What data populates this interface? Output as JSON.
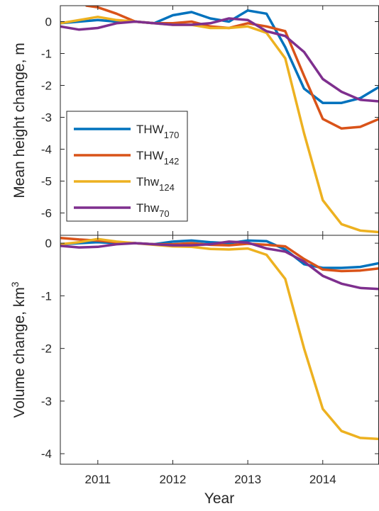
{
  "chart_data": [
    {
      "type": "line",
      "ylabel": "Mean height change, m",
      "xlim": [
        2010.5,
        2014.75
      ],
      "ylim": [
        -6.7,
        0.5
      ],
      "yticks": [
        0,
        -1,
        -2,
        -3,
        -4,
        -5,
        -6
      ],
      "ytick_labels": [
        "0",
        "-1",
        "-2",
        "-3",
        "-4",
        "-5",
        "-6"
      ],
      "legend_position": "lower-left",
      "series": [
        {
          "name": "THW",
          "name_sub": "170",
          "color": "#0072BD",
          "x": [
            2010.5,
            2010.75,
            2011.0,
            2011.25,
            2011.5,
            2011.75,
            2012.0,
            2012.25,
            2012.5,
            2012.75,
            2013.0,
            2013.25,
            2013.5,
            2013.75,
            2014.0,
            2014.25,
            2014.5,
            2014.75
          ],
          "y": [
            -0.05,
            0.0,
            0.05,
            0.0,
            0.0,
            -0.05,
            0.2,
            0.3,
            0.1,
            0.0,
            0.35,
            0.25,
            -0.8,
            -2.1,
            -2.55,
            -2.55,
            -2.4,
            -2.05
          ]
        },
        {
          "name": "THW",
          "name_sub": "142",
          "color": "#D95319",
          "x": [
            2010.85,
            2011.0,
            2011.25,
            2011.5,
            2011.75,
            2012.0,
            2012.25,
            2012.5,
            2012.75,
            2013.0,
            2013.25,
            2013.5,
            2013.75,
            2014.0,
            2014.25,
            2014.5,
            2014.75
          ],
          "y": [
            0.5,
            0.45,
            0.25,
            0.0,
            -0.05,
            -0.05,
            0.0,
            -0.15,
            -0.2,
            -0.05,
            -0.15,
            -0.3,
            -1.7,
            -3.05,
            -3.35,
            -3.3,
            -3.05
          ]
        },
        {
          "name": "Thw",
          "name_sub": "124",
          "color": "#EDB120",
          "x": [
            2010.5,
            2010.75,
            2011.0,
            2011.25,
            2011.5,
            2011.75,
            2012.0,
            2012.25,
            2012.5,
            2012.75,
            2013.0,
            2013.25,
            2013.5,
            2013.75,
            2014.0,
            2014.25,
            2014.5,
            2014.75
          ],
          "y": [
            -0.05,
            0.05,
            0.15,
            0.05,
            0.0,
            -0.05,
            -0.1,
            -0.1,
            -0.2,
            -0.2,
            -0.15,
            -0.35,
            -1.15,
            -3.5,
            -5.6,
            -6.35,
            -6.55,
            -6.6
          ]
        },
        {
          "name": "Thw",
          "name_sub": "70",
          "color": "#7E2F8E",
          "x": [
            2010.5,
            2010.75,
            2011.0,
            2011.25,
            2011.5,
            2011.75,
            2012.0,
            2012.25,
            2012.5,
            2012.75,
            2013.0,
            2013.25,
            2013.5,
            2013.75,
            2014.0,
            2014.25,
            2014.5,
            2014.75
          ],
          "y": [
            -0.15,
            -0.25,
            -0.2,
            -0.05,
            0.0,
            -0.05,
            -0.1,
            -0.1,
            -0.05,
            0.1,
            0.05,
            -0.3,
            -0.45,
            -0.95,
            -1.8,
            -2.2,
            -2.45,
            -2.5
          ]
        }
      ]
    },
    {
      "type": "line",
      "xlabel": "Year",
      "ylabel": "Volume change, km",
      "ylabel_sup": "3",
      "xlim": [
        2010.5,
        2014.75
      ],
      "ylim": [
        -4.2,
        0.15
      ],
      "xticks": [
        2011,
        2012,
        2013,
        2014
      ],
      "xtick_labels": [
        "2011",
        "2012",
        "2013",
        "2014"
      ],
      "yticks": [
        0,
        -1,
        -2,
        -3,
        -4
      ],
      "ytick_labels": [
        "0",
        "-1",
        "-2",
        "-3",
        "-4"
      ],
      "series": [
        {
          "color": "#0072BD",
          "x": [
            2010.5,
            2010.75,
            2011.0,
            2011.25,
            2011.5,
            2011.75,
            2012.0,
            2012.25,
            2012.5,
            2012.75,
            2013.0,
            2013.25,
            2013.5,
            2013.75,
            2014.0,
            2014.25,
            2014.5,
            2014.75
          ],
          "y": [
            -0.02,
            0.0,
            0.02,
            0.0,
            0.0,
            -0.02,
            0.03,
            0.05,
            0.02,
            0.0,
            0.05,
            0.04,
            -0.12,
            -0.4,
            -0.47,
            -0.47,
            -0.45,
            -0.38
          ]
        },
        {
          "color": "#D95319",
          "x": [
            2010.5,
            2010.75,
            2011.0,
            2011.25,
            2011.5,
            2011.75,
            2012.0,
            2012.25,
            2012.5,
            2012.75,
            2013.0,
            2013.25,
            2013.5,
            2013.75,
            2014.0,
            2014.25,
            2014.5,
            2014.75
          ],
          "y": [
            0.1,
            0.07,
            0.05,
            0.02,
            0.0,
            -0.02,
            -0.02,
            0.0,
            -0.03,
            -0.04,
            -0.01,
            -0.03,
            -0.06,
            -0.3,
            -0.5,
            -0.53,
            -0.52,
            -0.48
          ]
        },
        {
          "color": "#EDB120",
          "x": [
            2010.5,
            2010.75,
            2011.0,
            2011.25,
            2011.5,
            2011.75,
            2012.0,
            2012.25,
            2012.5,
            2012.75,
            2013.0,
            2013.25,
            2013.5,
            2013.75,
            2014.0,
            2014.25,
            2014.5,
            2014.75
          ],
          "y": [
            -0.02,
            0.02,
            0.08,
            0.03,
            0.0,
            -0.03,
            -0.06,
            -0.07,
            -0.11,
            -0.12,
            -0.1,
            -0.22,
            -0.68,
            -2.0,
            -3.15,
            -3.57,
            -3.7,
            -3.72
          ]
        },
        {
          "color": "#7E2F8E",
          "x": [
            2010.5,
            2010.75,
            2011.0,
            2011.25,
            2011.5,
            2011.75,
            2012.0,
            2012.25,
            2012.5,
            2012.75,
            2013.0,
            2013.25,
            2013.5,
            2013.75,
            2014.0,
            2014.25,
            2014.5,
            2014.75
          ],
          "y": [
            -0.05,
            -0.08,
            -0.07,
            -0.02,
            0.0,
            -0.02,
            -0.04,
            -0.04,
            -0.02,
            0.03,
            0.01,
            -0.1,
            -0.16,
            -0.35,
            -0.62,
            -0.77,
            -0.85,
            -0.87
          ]
        }
      ]
    }
  ]
}
